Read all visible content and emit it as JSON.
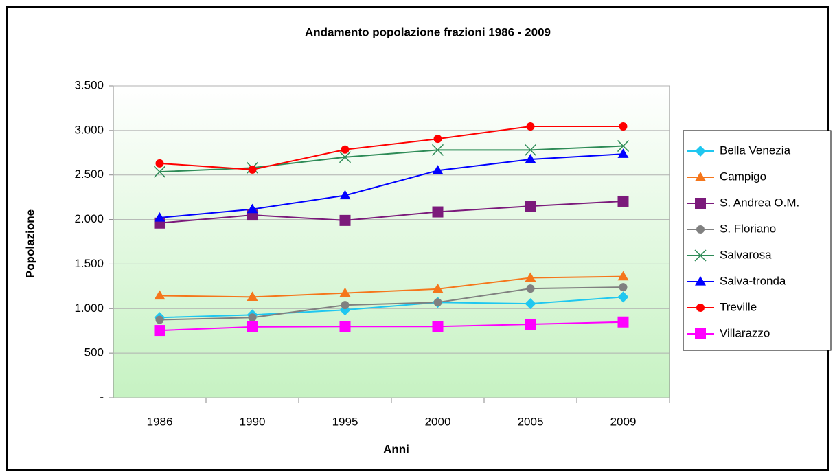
{
  "chart_data": {
    "type": "line",
    "title": "Andamento popolazione frazioni 1986 - 2009",
    "x_label": "Anni",
    "y_label": "Popolazione",
    "categories": [
      "1986",
      "1990",
      "1995",
      "2000",
      "2005",
      "2009"
    ],
    "series": [
      {
        "name": "Bella Venezia",
        "color": "#1fc7f0",
        "marker": "diamond",
        "values": [
          900,
          930,
          985,
          1070,
          1055,
          1130
        ]
      },
      {
        "name": "Campigo",
        "color": "#f5761b",
        "marker": "triangle",
        "values": [
          1145,
          1130,
          1175,
          1220,
          1345,
          1360
        ]
      },
      {
        "name": "S. Andrea O.M.",
        "color": "#7b1a7b",
        "marker": "square",
        "values": [
          1960,
          2050,
          1990,
          2085,
          2150,
          2205
        ]
      },
      {
        "name": "S. Floriano",
        "color": "#808080",
        "marker": "circle",
        "values": [
          875,
          900,
          1040,
          1070,
          1225,
          1240
        ]
      },
      {
        "name": "Salvarosa",
        "color": "#2e8b57",
        "marker": "x",
        "values": [
          2535,
          2580,
          2700,
          2780,
          2780,
          2825
        ]
      },
      {
        "name": "Salva-tronda",
        "color": "#0000ff",
        "marker": "triangle",
        "values": [
          2020,
          2115,
          2270,
          2550,
          2675,
          2735
        ]
      },
      {
        "name": "Treville",
        "color": "#ff0000",
        "marker": "circle",
        "values": [
          2630,
          2560,
          2785,
          2905,
          3045,
          3045
        ]
      },
      {
        "name": "Villarazzo",
        "color": "#ff00ff",
        "marker": "square",
        "values": [
          755,
          795,
          800,
          800,
          825,
          850
        ]
      }
    ],
    "ylim": [
      0,
      3500
    ],
    "yticks": [
      {
        "value": 0,
        "label": "-"
      },
      500,
      {
        "value": 1000,
        "label": "1.000"
      },
      {
        "value": 1500,
        "label": "1.500"
      },
      {
        "value": 2000,
        "label": "2.000"
      },
      {
        "value": 2500,
        "label": "2.500"
      },
      {
        "value": 3000,
        "label": "3.000"
      },
      {
        "value": 3500,
        "label": "3.500"
      }
    ],
    "grid": true,
    "legend": "right"
  }
}
